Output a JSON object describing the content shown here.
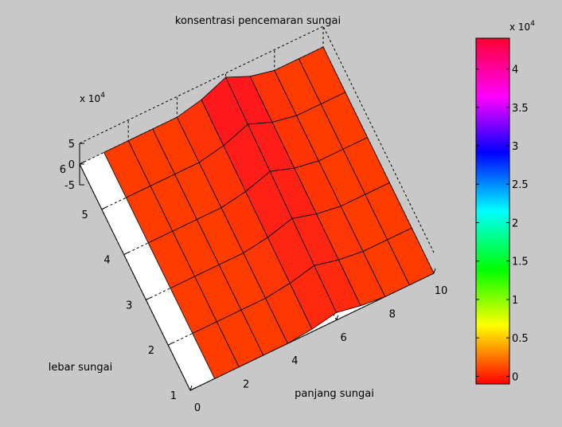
{
  "chart_data": {
    "type": "surface",
    "title": "konsentrasi pencemaran sungai",
    "xlabel": "panjang sungai",
    "ylabel": "lebar sungai",
    "zlabel": "",
    "x": [
      0,
      2,
      4,
      6,
      8,
      10
    ],
    "x_ticks": [
      "0",
      "2",
      "4",
      "6",
      "8",
      "10"
    ],
    "y": [
      1,
      2,
      3,
      4,
      5,
      6
    ],
    "y_ticks": [
      "1",
      "2",
      "3",
      "4",
      "5",
      "6"
    ],
    "z_ticks": [
      "-5",
      "0",
      "5"
    ],
    "z_multiplier": "x 10",
    "z_exponent": "4",
    "xlim": [
      0,
      10
    ],
    "ylim": [
      1,
      6
    ],
    "zlim": [
      -50000,
      50000
    ],
    "grid": true,
    "surface_grid_x": [
      1,
      2,
      3,
      4,
      5,
      6,
      7,
      8,
      9,
      10
    ],
    "surface_grid_y": [
      1,
      2,
      3,
      4,
      5,
      6
    ],
    "surface_values_note": "",
    "peak_column_x": 6,
    "colorbar": {
      "colormap": "hsv",
      "range": [
        -1000,
        44000
      ],
      "ticks": [
        "0",
        "0.5",
        "1",
        "1.5",
        "2",
        "2.5",
        "3",
        "3.5",
        "4"
      ],
      "multiplier": "x 10",
      "exponent": "4"
    }
  }
}
